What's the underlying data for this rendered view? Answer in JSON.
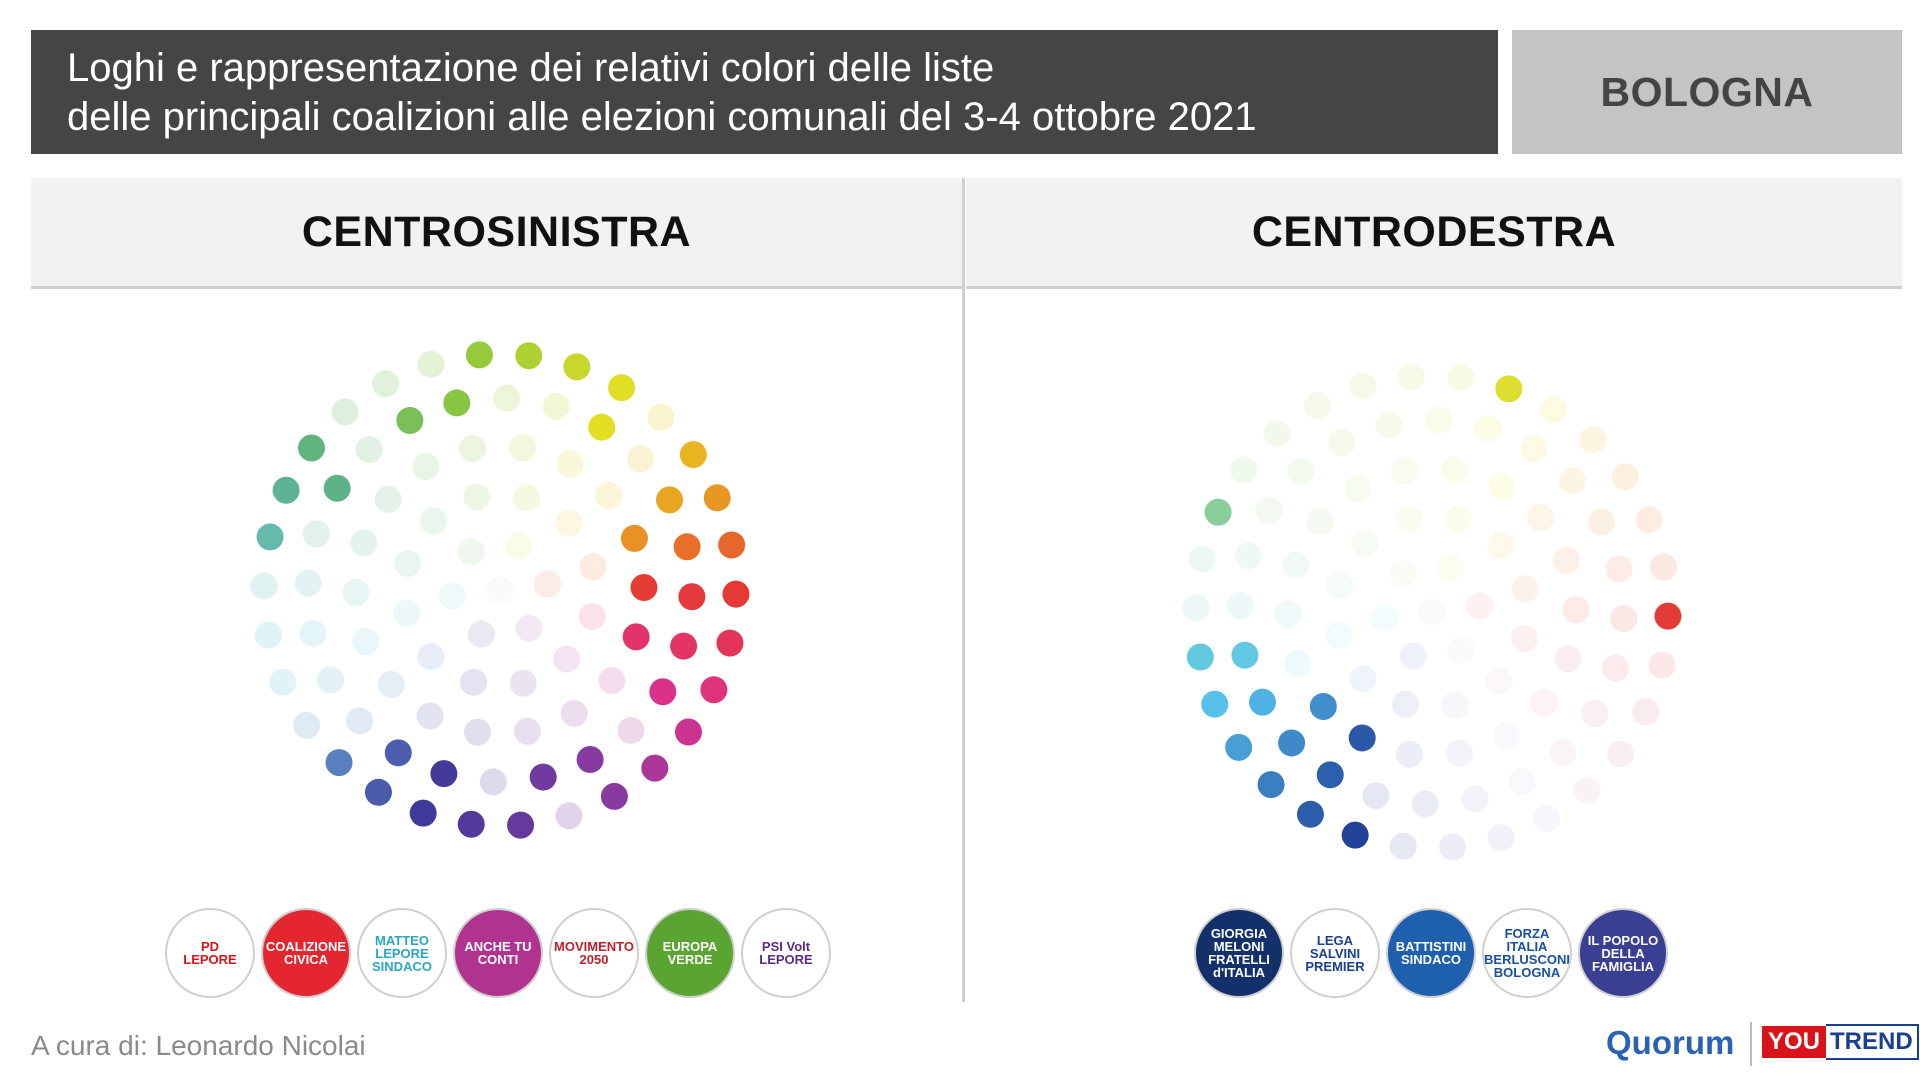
{
  "header": {
    "title_line1": "Loghi e rappresentazione dei relativi colori delle liste",
    "title_line2": "delle principali coalizioni alle elezioni comunali del 3-4 ottobre 2021",
    "city": "BOLOGNA"
  },
  "panels": {
    "left_title": "CENTROSINISTRA",
    "right_title": "CENTRODESTRA"
  },
  "left_logos": [
    {
      "name": "pd-lepore-logo",
      "text": "PD\nLEPORE",
      "bg": "#ffffff",
      "fg": "#d7141a"
    },
    {
      "name": "coalizione-civica-logo",
      "text": "COALIZIONE\nCIVICA",
      "bg": "#e3262f",
      "fg": "#ffffff"
    },
    {
      "name": "matteo-lepore-logo",
      "text": "MATTEO\nLEPORE\nSINDACO",
      "bg": "#ffffff",
      "fg": "#2aa7c4"
    },
    {
      "name": "anche-tu-conti-logo",
      "text": "ANCHE TU\nCONTI",
      "bg": "#b0348f",
      "fg": "#ffffff"
    },
    {
      "name": "movimento-2050-logo",
      "text": "MOVIMENTO\n2050",
      "bg": "#ffffff",
      "fg": "#c0202a"
    },
    {
      "name": "europa-verde-logo",
      "text": "EUROPA\nVERDE",
      "bg": "#5aa532",
      "fg": "#ffffff"
    },
    {
      "name": "psi-volt-logo",
      "text": "PSI Volt\nLEPORE",
      "bg": "#ffffff",
      "fg": "#5b2a86"
    }
  ],
  "right_logos": [
    {
      "name": "fratelli-italia-logo",
      "text": "GIORGIA\nMELONI\nFRATELLI\nd'ITALIA",
      "bg": "#13306a",
      "fg": "#ffffff"
    },
    {
      "name": "lega-salvini-logo",
      "text": "LEGA\nSALVINI\nPREMIER",
      "bg": "#ffffff",
      "fg": "#1a3f8f"
    },
    {
      "name": "battistini-logo",
      "text": "BATTISTINI\nSINDACO",
      "bg": "#1e5fae",
      "fg": "#ffffff"
    },
    {
      "name": "forza-italia-logo",
      "text": "FORZA\nITALIA\nBERLUSCONI\nBOLOGNA",
      "bg": "#ffffff",
      "fg": "#1a4fa0"
    },
    {
      "name": "popolo-famiglia-logo",
      "text": "IL POPOLO\nDELLA\nFAMIGLIA",
      "bg": "#3a3f94",
      "fg": "#ffffff"
    }
  ],
  "footer": {
    "credit": "A cura di: Leonardo Nicolai",
    "quorum": "Quorum",
    "youtrend_you": "YOU",
    "youtrend_trend": "TREND"
  }
}
